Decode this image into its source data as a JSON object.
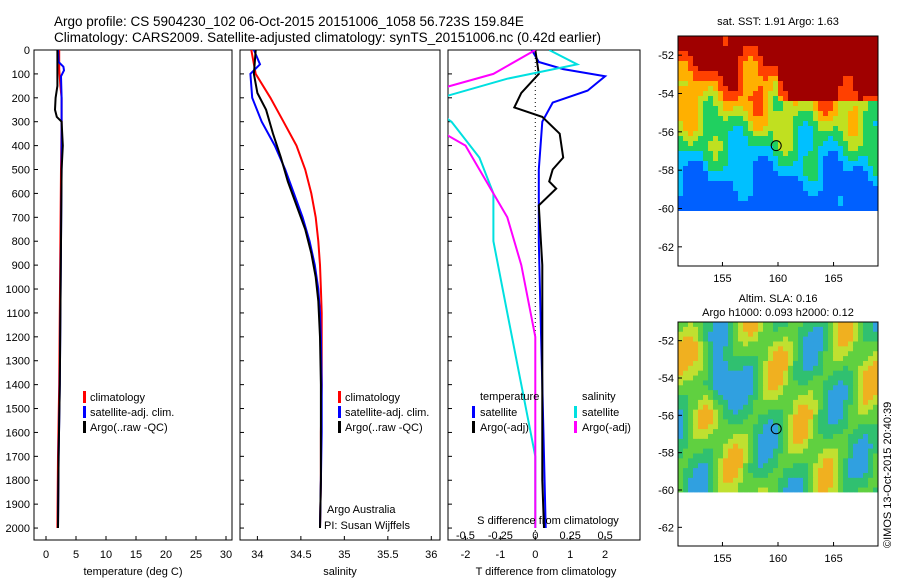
{
  "header": {
    "line1": "Argo profile: CS 5904230_102 06-Oct-2015 20151006_1058 56.723S 159.84E",
    "line2": "Climatology: CARS2009. Satellite-adjusted climatology: synTS_20151006.nc (0.42d earlier)"
  },
  "colors": {
    "climatology": "#ff0000",
    "satellite": "#0000ff",
    "argo": "#000000",
    "sat_salinity": "#00e0e0",
    "argo_salinity": "#ff00ff"
  },
  "chart_data": [
    {
      "type": "line",
      "id": "temperature",
      "xlabel": "temperature (deg C)",
      "xlim": [
        -2,
        31
      ],
      "xticks": [
        0,
        5,
        10,
        15,
        20,
        25,
        30
      ],
      "ylim": [
        0,
        2050
      ],
      "yticks": [
        0,
        100,
        200,
        300,
        400,
        500,
        600,
        700,
        800,
        900,
        1000,
        1100,
        1200,
        1300,
        1400,
        1500,
        1600,
        1700,
        1800,
        1900,
        2000
      ],
      "legend": [
        "climatology",
        "satellite-adj. clim.",
        "Argo(..raw -QC)"
      ],
      "series": [
        {
          "name": "climatology",
          "color": "#ff0000",
          "points": [
            [
              2.2,
              0
            ],
            [
              2.2,
              80
            ],
            [
              2.4,
              150
            ],
            [
              2.6,
              200
            ],
            [
              2.6,
              300
            ],
            [
              2.5,
              500
            ],
            [
              2.4,
              800
            ],
            [
              2.3,
              1100
            ],
            [
              2.2,
              1400
            ],
            [
              2.0,
              1700
            ],
            [
              1.9,
              2000
            ]
          ]
        },
        {
          "name": "satellite-adj. clim.",
          "color": "#0000ff",
          "points": [
            [
              2.0,
              0
            ],
            [
              2.1,
              50
            ],
            [
              2.9,
              70
            ],
            [
              3.0,
              85
            ],
            [
              2.5,
              110
            ],
            [
              2.6,
              200
            ],
            [
              2.6,
              300
            ],
            [
              2.6,
              500
            ],
            [
              2.5,
              800
            ],
            [
              2.4,
              1100
            ],
            [
              2.3,
              1400
            ],
            [
              2.1,
              1700
            ],
            [
              2.0,
              2000
            ]
          ]
        },
        {
          "name": "Argo(..raw -QC)",
          "color": "#000000",
          "points": [
            [
              1.9,
              0
            ],
            [
              1.9,
              150
            ],
            [
              1.6,
              200
            ],
            [
              1.5,
              250
            ],
            [
              1.8,
              280
            ],
            [
              2.6,
              300
            ],
            [
              2.8,
              400
            ],
            [
              2.6,
              500
            ],
            [
              2.5,
              800
            ],
            [
              2.4,
              1100
            ],
            [
              2.3,
              1400
            ],
            [
              2.1,
              1700
            ],
            [
              2.0,
              2000
            ]
          ]
        }
      ]
    },
    {
      "type": "line",
      "id": "salinity",
      "xlabel": "salinity",
      "xlim": [
        33.8,
        36.1
      ],
      "xticks": [
        34,
        34.5,
        35,
        35.5,
        36
      ],
      "ylim": [
        0,
        2050
      ],
      "legend": [
        "climatology",
        "satellite-adj. clim.",
        "Argo(..raw -QC)"
      ],
      "credits": [
        "Argo Australia",
        "PI: Susan Wijffels"
      ],
      "series": [
        {
          "name": "climatology",
          "color": "#ff0000",
          "points": [
            [
              33.93,
              0
            ],
            [
              33.98,
              100
            ],
            [
              34.15,
              200
            ],
            [
              34.3,
              300
            ],
            [
              34.45,
              400
            ],
            [
              34.55,
              500
            ],
            [
              34.62,
              600
            ],
            [
              34.67,
              700
            ],
            [
              34.7,
              800
            ],
            [
              34.72,
              900
            ],
            [
              34.73,
              1000
            ],
            [
              34.74,
              1100
            ],
            [
              34.74,
              1200
            ],
            [
              34.74,
              1400
            ],
            [
              34.73,
              1600
            ],
            [
              34.73,
              1800
            ],
            [
              34.72,
              2000
            ]
          ]
        },
        {
          "name": "satellite-adj. clim.",
          "color": "#0000ff",
          "points": [
            [
              33.96,
              0
            ],
            [
              34.03,
              60
            ],
            [
              33.92,
              100
            ],
            [
              33.94,
              200
            ],
            [
              34.05,
              300
            ],
            [
              34.2,
              400
            ],
            [
              34.32,
              500
            ],
            [
              34.42,
              600
            ],
            [
              34.52,
              700
            ],
            [
              34.6,
              800
            ],
            [
              34.66,
              900
            ],
            [
              34.7,
              1000
            ],
            [
              34.72,
              1100
            ],
            [
              34.73,
              1200
            ],
            [
              34.74,
              1400
            ],
            [
              34.74,
              1600
            ],
            [
              34.73,
              1800
            ],
            [
              34.72,
              2000
            ]
          ]
        },
        {
          "name": "Argo(..raw -QC)",
          "color": "#000000",
          "points": [
            [
              33.98,
              0
            ],
            [
              33.96,
              100
            ],
            [
              34.0,
              180
            ],
            [
              34.1,
              250
            ],
            [
              34.18,
              350
            ],
            [
              34.27,
              450
            ],
            [
              34.35,
              550
            ],
            [
              34.45,
              650
            ],
            [
              34.55,
              750
            ],
            [
              34.62,
              850
            ],
            [
              34.67,
              950
            ],
            [
              34.7,
              1050
            ],
            [
              34.72,
              1200
            ],
            [
              34.73,
              1400
            ],
            [
              34.73,
              1600
            ],
            [
              34.73,
              1800
            ],
            [
              34.72,
              2000
            ]
          ]
        }
      ]
    },
    {
      "type": "line",
      "id": "difference",
      "xlabel_top": "S difference from climatology",
      "xlabel": "T difference from climatology",
      "xlim_T": [
        -2.5,
        3
      ],
      "xticks_T": [
        -2,
        -1,
        0,
        1,
        2
      ],
      "xticks_S": [
        -0.5,
        -0.25,
        0,
        0.25,
        0.5
      ],
      "ylim": [
        0,
        2050
      ],
      "legend_temperature": {
        "heading": "temperature",
        "items": [
          "satellite",
          "Argo(-adj)"
        ]
      },
      "legend_salinity": {
        "heading": "salinity",
        "items": [
          "satellite",
          "Argo(-adj)"
        ]
      },
      "series": [
        {
          "name": "satellite",
          "group": "temperature",
          "color": "#0000ff",
          "points": [
            [
              -0.1,
              0
            ],
            [
              0.1,
              50
            ],
            [
              0.8,
              80
            ],
            [
              2.0,
              110
            ],
            [
              1.5,
              170
            ],
            [
              0.5,
              220
            ],
            [
              0.2,
              300
            ],
            [
              0.1,
              500
            ],
            [
              0.1,
              800
            ],
            [
              0.15,
              1100
            ],
            [
              0.2,
              1400
            ],
            [
              0.25,
              1700
            ],
            [
              0.3,
              2000
            ]
          ]
        },
        {
          "name": "Argo(-adj)",
          "group": "temperature",
          "color": "#000000",
          "points": [
            [
              0,
              0
            ],
            [
              0.1,
              100
            ],
            [
              -0.4,
              180
            ],
            [
              -0.6,
              240
            ],
            [
              0.2,
              280
            ],
            [
              0.7,
              350
            ],
            [
              0.8,
              450
            ],
            [
              0.5,
              500
            ],
            [
              0.4,
              550
            ],
            [
              0.6,
              580
            ],
            [
              0.1,
              650
            ],
            [
              0.2,
              900
            ],
            [
              0.2,
              1200
            ],
            [
              0.2,
              1500
            ],
            [
              0.2,
              1800
            ],
            [
              0.25,
              2000
            ]
          ]
        },
        {
          "name": "satellite",
          "group": "salinity",
          "color": "#00e0e0",
          "points": [
            [
              0.1,
              0
            ],
            [
              0.3,
              60
            ],
            [
              -0.2,
              120
            ],
            [
              -0.8,
              220
            ],
            [
              -0.6,
              300
            ],
            [
              -0.4,
              450
            ],
            [
              -0.3,
              600
            ],
            [
              -0.3,
              800
            ],
            [
              -0.2,
              1100
            ],
            [
              -0.1,
              1400
            ],
            [
              0,
              1700
            ],
            [
              0,
              2000
            ]
          ]
        },
        {
          "name": "Argo(-adj)",
          "group": "salinity",
          "color": "#ff00ff",
          "points": [
            [
              0,
              0
            ],
            [
              -0.3,
              100
            ],
            [
              -1.1,
              230
            ],
            [
              -0.8,
              300
            ],
            [
              -0.5,
              400
            ],
            [
              -0.4,
              500
            ],
            [
              -0.2,
              700
            ],
            [
              -0.1,
              900
            ],
            [
              0,
              1200
            ],
            [
              0,
              2000
            ]
          ]
        }
      ]
    },
    {
      "type": "heatmap",
      "id": "sst-map",
      "title": "sat. SST: 1.91 Argo: 1.63",
      "xlim": [
        151,
        169
      ],
      "ylim": [
        -63,
        -51
      ],
      "xticks": [
        155,
        160,
        165
      ],
      "yticks": [
        -52,
        -54,
        -56,
        -58,
        -60,
        -62
      ],
      "marker": {
        "lon": 159.84,
        "lat": -56.72
      }
    },
    {
      "type": "heatmap",
      "id": "sla-map",
      "title_line1": "Altim. SLA: 0.16",
      "title_line2": "Argo h1000: 0.093 h2000: 0.12",
      "xlim": [
        151,
        169
      ],
      "ylim": [
        -63,
        -51
      ],
      "xticks": [
        155,
        160,
        165
      ],
      "yticks": [
        -52,
        -54,
        -56,
        -58,
        -60,
        -62
      ],
      "marker": {
        "lon": 159.84,
        "lat": -56.72
      }
    }
  ],
  "footer": {
    "stamp": "©IMOS 13-Oct-2015 20:40:39"
  }
}
